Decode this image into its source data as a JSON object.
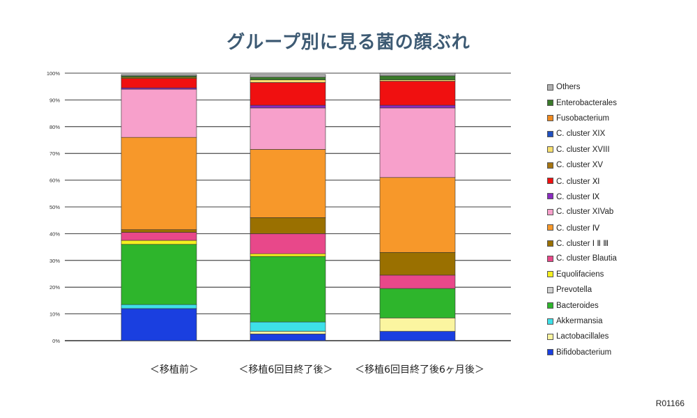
{
  "chart_data": {
    "type": "bar",
    "stacked": true,
    "title": "グループ別に見る菌の顔ぶれ",
    "ylim": [
      0,
      100
    ],
    "yticks": [
      "0%",
      "10%",
      "20%",
      "30%",
      "40%",
      "50%",
      "60%",
      "70%",
      "80%",
      "90%",
      "100%"
    ],
    "grid": true,
    "legend_position": "right",
    "categories": [
      "＜移植前＞",
      "＜移植6回目終了後＞",
      "＜移植6回目終了後6ヶ月後＞"
    ],
    "series": [
      {
        "name": "Bifidobacterium",
        "color": "#1a3fe0",
        "values": [
          12,
          2.5,
          3.5
        ]
      },
      {
        "name": "Lactobacillales",
        "color": "#fbf5a0",
        "values": [
          0,
          1,
          5
        ]
      },
      {
        "name": "Akkermansia",
        "color": "#3ee0e8",
        "values": [
          1.5,
          3.5,
          0
        ]
      },
      {
        "name": "Bacteroides",
        "color": "#2eb52c",
        "values": [
          22.5,
          24.5,
          11
        ]
      },
      {
        "name": "Prevotella",
        "color": "#d0d0d0",
        "values": [
          0,
          0,
          0
        ]
      },
      {
        "name": "Equolifaciens",
        "color": "#f5f020",
        "values": [
          1.5,
          1,
          0
        ]
      },
      {
        "name": "C. cluster Blautia",
        "color": "#e8488a",
        "values": [
          3,
          7.5,
          5
        ]
      },
      {
        "name": "C. cluster ⅠⅡⅢ",
        "color": "#9a7000",
        "values": [
          1,
          6,
          8.5
        ]
      },
      {
        "name": "C. cluster Ⅳ",
        "color": "#f7982a",
        "values": [
          34.5,
          25.5,
          28
        ]
      },
      {
        "name": "C. cluster XIVab",
        "color": "#f7a0cb",
        "values": [
          18,
          15.5,
          26
        ]
      },
      {
        "name": "C. cluster Ⅸ",
        "color": "#8a2cc0",
        "values": [
          0.5,
          1,
          1
        ]
      },
      {
        "name": "C. cluster Ⅺ",
        "color": "#f01010",
        "values": [
          3.5,
          8.5,
          9
        ]
      },
      {
        "name": "C. cluster XV",
        "color": "#a67410",
        "values": [
          0.5,
          0,
          0
        ]
      },
      {
        "name": "C. cluster XVIII",
        "color": "#f8e070",
        "values": [
          0,
          1,
          0.5
        ]
      },
      {
        "name": "C. cluster XIX",
        "color": "#2050c0",
        "values": [
          0,
          0,
          0
        ]
      },
      {
        "name": "Fusobacterium",
        "color": "#f08a20",
        "values": [
          0,
          0,
          0
        ]
      },
      {
        "name": "Enterobacterales",
        "color": "#3a7a2a",
        "values": [
          0.5,
          1,
          1.5
        ]
      },
      {
        "name": "Others",
        "color": "#b0b0b0",
        "values": [
          0.5,
          1,
          1
        ]
      }
    ]
  },
  "legend_order": [
    "Others",
    "Enterobacterales",
    "Fusobacterium",
    "C. cluster XIX",
    "C. cluster XVIII",
    "C. cluster XV",
    "C. cluster Ⅺ",
    "C. cluster Ⅸ",
    "C. cluster XIVab",
    "C. cluster Ⅳ",
    "C. cluster ⅠⅡⅢ",
    "C. cluster Blautia",
    "Equolifaciens",
    "Prevotella",
    "Bacteroides",
    "Akkermansia",
    "Lactobacillales",
    "Bifidobacterium"
  ],
  "legend_labels": {
    "Others": "Others",
    "Enterobacterales": "Enterobacterales",
    "Fusobacterium": "Fusobacterium",
    "C. cluster XIX": "C. cluster XIX",
    "C. cluster XVIII": "C. cluster XVIII",
    "C. cluster XV": "C. cluster XV",
    "C. cluster Ⅺ": "C. cluster Ⅺ",
    "C. cluster Ⅸ": "C. cluster Ⅸ",
    "C. cluster XIVab": "C. cluster XIVab",
    "C. cluster Ⅳ": "C. cluster Ⅳ",
    "C. cluster ⅠⅡⅢ": "C. cluster Ⅰ Ⅱ Ⅲ",
    "C. cluster Blautia": "C. cluster Blautia",
    "Equolifaciens": "Equolifaciens",
    "Prevotella": "Prevotella",
    "Bacteroides": "Bacteroides",
    "Akkermansia": "Akkermansia",
    "Lactobacillales": "Lactobacillales",
    "Bifidobacterium": "Bifidobacterium"
  },
  "doc_code": "R01166"
}
